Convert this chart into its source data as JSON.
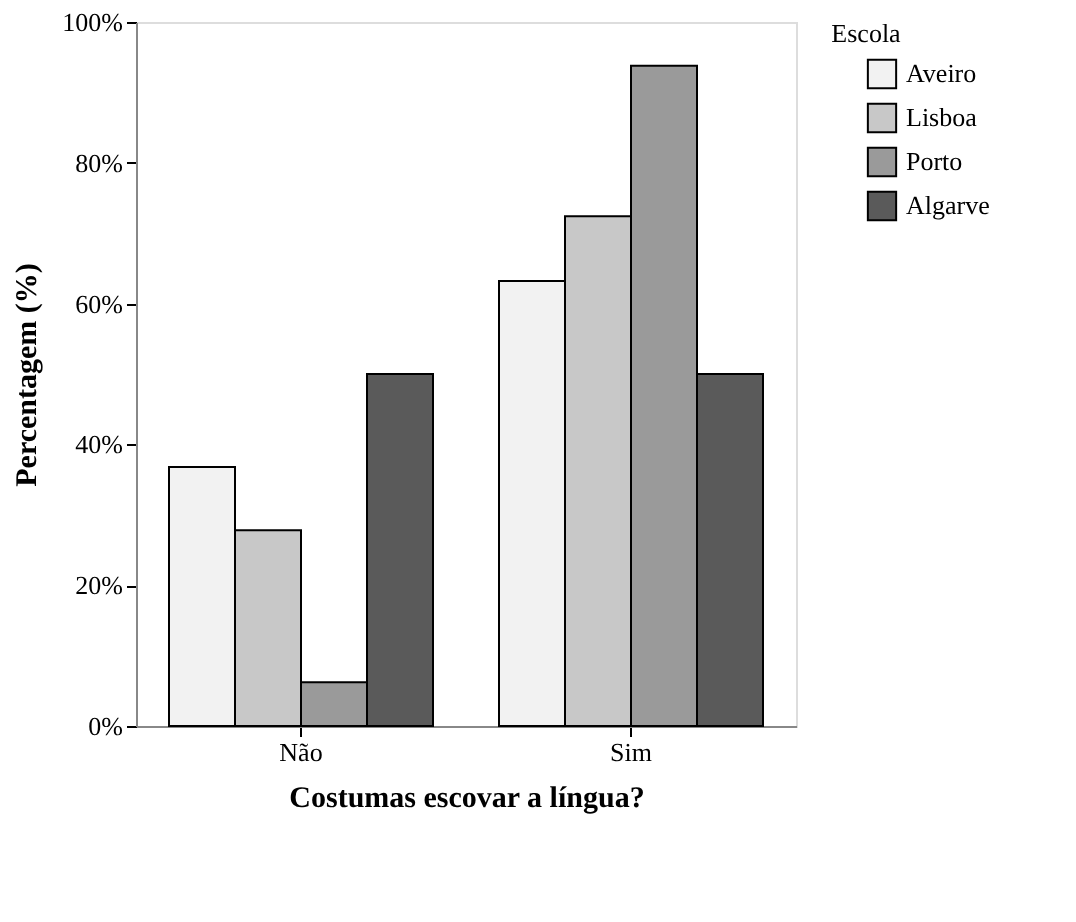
{
  "chart_data": {
    "type": "bar",
    "xlabel": "Costumas escovar a língua?",
    "ylabel": "Percentagem (%)",
    "legend_title": "Escola",
    "categories": [
      "Não",
      "Sim"
    ],
    "series": [
      {
        "name": "Aveiro",
        "color": "#f2f2f2",
        "values": [
          36.8,
          63.2
        ]
      },
      {
        "name": "Lisboa",
        "color": "#c8c8c8",
        "values": [
          27.8,
          72.4
        ]
      },
      {
        "name": "Porto",
        "color": "#9a9a9a",
        "values": [
          6.2,
          93.8
        ]
      },
      {
        "name": "Algarve",
        "color": "#5a5a5a",
        "values": [
          50.0,
          50.0
        ]
      }
    ],
    "ylim": [
      0,
      100
    ],
    "yticks": [
      {
        "value": 0,
        "label": "0%"
      },
      {
        "value": 20,
        "label": "20%"
      },
      {
        "value": 40,
        "label": "40%"
      },
      {
        "value": 60,
        "label": "60%"
      },
      {
        "value": 80,
        "label": "80%"
      },
      {
        "value": 100,
        "label": "100%"
      }
    ],
    "grid": false,
    "legend": "top right"
  }
}
